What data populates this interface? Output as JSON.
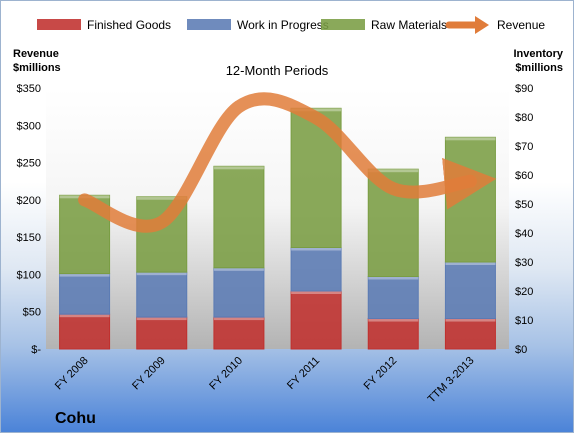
{
  "chart_data": {
    "type": "bar",
    "subtype": "stacked-bar-with-line",
    "title": "12-Month Periods",
    "company": "Cohu",
    "categories": [
      "FY 2008",
      "FY 2009",
      "FY 2010",
      "FY 2011",
      "FY 2012",
      "TTM 3-2013"
    ],
    "series": [
      {
        "name": "Finished Goods",
        "kind": "bar",
        "axis": "right",
        "color": "#c0302e",
        "values": [
          12,
          11,
          11,
          20,
          10.5,
          10.5
        ]
      },
      {
        "name": "Work in Progress",
        "kind": "bar",
        "axis": "right",
        "color": "#5b7bb4",
        "values": [
          14,
          15.5,
          17,
          15,
          14.5,
          19.5
        ]
      },
      {
        "name": "Raw Materials",
        "kind": "bar",
        "axis": "right",
        "color": "#7a9d43",
        "values": [
          27,
          26,
          35,
          48,
          37,
          43
        ]
      },
      {
        "name": "Revenue",
        "kind": "line",
        "axis": "left",
        "color": "#e07c3a",
        "values": [
          200,
          170,
          325,
          310,
          215,
          225
        ]
      }
    ],
    "left_axis": {
      "label_line1": "Revenue",
      "label_line2": "$millions",
      "ylim": [
        0,
        350
      ],
      "ticks": [
        "$-",
        "$50",
        "$100",
        "$150",
        "$200",
        "$250",
        "$300",
        "$350"
      ]
    },
    "right_axis": {
      "label_line1": "Inventory",
      "label_line2": "$millions",
      "ylim": [
        0,
        90
      ],
      "ticks": [
        "$0",
        "$10",
        "$20",
        "$30",
        "$40",
        "$50",
        "$60",
        "$70",
        "$80",
        "$90"
      ]
    },
    "legend_position": "top",
    "grid": false
  }
}
